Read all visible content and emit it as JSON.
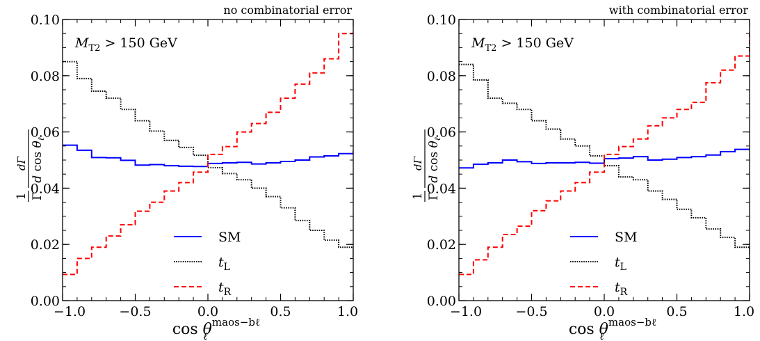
{
  "chart_data": [
    {
      "type": "line",
      "panel_label": "no combinatorial error",
      "annotation": "M_T2 > 150 GeV",
      "annotation_parts": {
        "var": "M",
        "sub": "T2",
        "rest": " > 150 GeV"
      },
      "xlabel": "cos θ_ℓ^{maos−bℓ}",
      "xlabel_parts": {
        "base": "cos θ",
        "sub": "ℓ",
        "sup": "maos−bℓ"
      },
      "ylabel": "1/Γ dΓ/d cos θ_ℓ",
      "ylabel_parts": {
        "num1": "1",
        "den1": "Γ",
        "num2": "dΓ",
        "den2": "d cos θ",
        "den2_sub": "ℓ"
      },
      "xlim": [
        -1.0,
        1.0
      ],
      "ylim": [
        0.0,
        0.1
      ],
      "xticks": [
        -1.0,
        -0.5,
        0.0,
        0.5,
        1.0
      ],
      "xtick_labels": [
        "−1.0",
        "−0.5",
        "0.0",
        "0.5",
        "1.0"
      ],
      "yticks": [
        0.0,
        0.02,
        0.04,
        0.06,
        0.08,
        0.1
      ],
      "ytick_labels": [
        "0.00",
        "0.02",
        "0.04",
        "0.06",
        "0.08",
        "0.10"
      ],
      "grid": false,
      "legend_placement": "bottom-center",
      "bin_edges": [
        -1.0,
        -0.9,
        -0.8,
        -0.7,
        -0.6,
        -0.5,
        -0.4,
        -0.3,
        -0.2,
        -0.1,
        0.0,
        0.1,
        0.2,
        0.3,
        0.4,
        0.5,
        0.6,
        0.7,
        0.8,
        0.9,
        1.0
      ],
      "series": [
        {
          "name": "SM",
          "name_parts": {
            "base": "SM",
            "sub": ""
          },
          "color": "#0000ff",
          "style": "solid",
          "values": [
            0.0553,
            0.0535,
            0.0509,
            0.0508,
            0.0499,
            0.0482,
            0.0484,
            0.048,
            0.0478,
            0.0477,
            0.0488,
            0.049,
            0.0492,
            0.0486,
            0.049,
            0.0495,
            0.05,
            0.0511,
            0.0515,
            0.0523,
            0.0533
          ]
        },
        {
          "name": "t_L",
          "name_parts": {
            "base": "t",
            "sub": "L"
          },
          "color": "#000000",
          "style": "dotted",
          "values": [
            0.085,
            0.079,
            0.0745,
            0.072,
            0.068,
            0.064,
            0.0603,
            0.057,
            0.0545,
            0.0517,
            0.0473,
            0.0452,
            0.043,
            0.04,
            0.037,
            0.033,
            0.0285,
            0.025,
            0.0215,
            0.019,
            0.0155
          ]
        },
        {
          "name": "t_R",
          "name_parts": {
            "base": "t",
            "sub": "R"
          },
          "color": "#ff0000",
          "style": "dashed",
          "values": [
            0.0093,
            0.015,
            0.019,
            0.023,
            0.027,
            0.0318,
            0.035,
            0.039,
            0.042,
            0.0457,
            0.052,
            0.0548,
            0.06,
            0.063,
            0.067,
            0.072,
            0.077,
            0.081,
            0.086,
            0.095,
            0.0955
          ]
        }
      ]
    },
    {
      "type": "line",
      "panel_label": "with combinatorial error",
      "annotation": "M_T2 > 150 GeV",
      "annotation_parts": {
        "var": "M",
        "sub": "T2",
        "rest": " > 150 GeV"
      },
      "xlabel": "cos θ_ℓ^{maos−bℓ}",
      "xlabel_parts": {
        "base": "cos θ",
        "sub": "ℓ",
        "sup": "maos−bℓ"
      },
      "ylabel": "1/Γ dΓ/d cos θ_ℓ",
      "ylabel_parts": {
        "num1": "1",
        "den1": "Γ",
        "num2": "dΓ",
        "den2": "d cos θ",
        "den2_sub": "ℓ"
      },
      "xlim": [
        -1.0,
        1.0
      ],
      "ylim": [
        0.0,
        0.1
      ],
      "xticks": [
        -1.0,
        -0.5,
        0.0,
        0.5,
        1.0
      ],
      "xtick_labels": [
        "−1.0",
        "−0.5",
        "0.0",
        "0.5",
        "1.0"
      ],
      "yticks": [
        0.0,
        0.02,
        0.04,
        0.06,
        0.08,
        0.1
      ],
      "ytick_labels": [
        "0.00",
        "0.02",
        "0.04",
        "0.06",
        "0.08",
        "0.10"
      ],
      "grid": false,
      "legend_placement": "bottom-center",
      "bin_edges": [
        -1.0,
        -0.9,
        -0.8,
        -0.7,
        -0.6,
        -0.5,
        -0.4,
        -0.3,
        -0.2,
        -0.1,
        0.0,
        0.1,
        0.2,
        0.3,
        0.4,
        0.5,
        0.6,
        0.7,
        0.8,
        0.9,
        1.0
      ],
      "series": [
        {
          "name": "SM",
          "name_parts": {
            "base": "SM",
            "sub": ""
          },
          "color": "#0000ff",
          "style": "solid",
          "values": [
            0.0472,
            0.0485,
            0.049,
            0.05,
            0.0494,
            0.0488,
            0.049,
            0.049,
            0.0492,
            0.0489,
            0.0505,
            0.0507,
            0.0512,
            0.05,
            0.0503,
            0.0509,
            0.0512,
            0.0518,
            0.053,
            0.0538,
            0.0542
          ]
        },
        {
          "name": "t_L",
          "name_parts": {
            "base": "t",
            "sub": "L"
          },
          "color": "#000000",
          "style": "dotted",
          "values": [
            0.084,
            0.0785,
            0.072,
            0.0702,
            0.068,
            0.064,
            0.061,
            0.0575,
            0.055,
            0.0515,
            0.048,
            0.044,
            0.043,
            0.039,
            0.036,
            0.0325,
            0.0295,
            0.0255,
            0.0225,
            0.019,
            0.0162
          ]
        },
        {
          "name": "t_R",
          "name_parts": {
            "base": "t",
            "sub": "R"
          },
          "color": "#ff0000",
          "style": "dashed",
          "values": [
            0.0093,
            0.0145,
            0.019,
            0.0235,
            0.0265,
            0.032,
            0.0355,
            0.039,
            0.042,
            0.0457,
            0.052,
            0.0548,
            0.0575,
            0.0622,
            0.065,
            0.068,
            0.0705,
            0.0775,
            0.082,
            0.087,
            0.0955
          ]
        }
      ]
    }
  ]
}
